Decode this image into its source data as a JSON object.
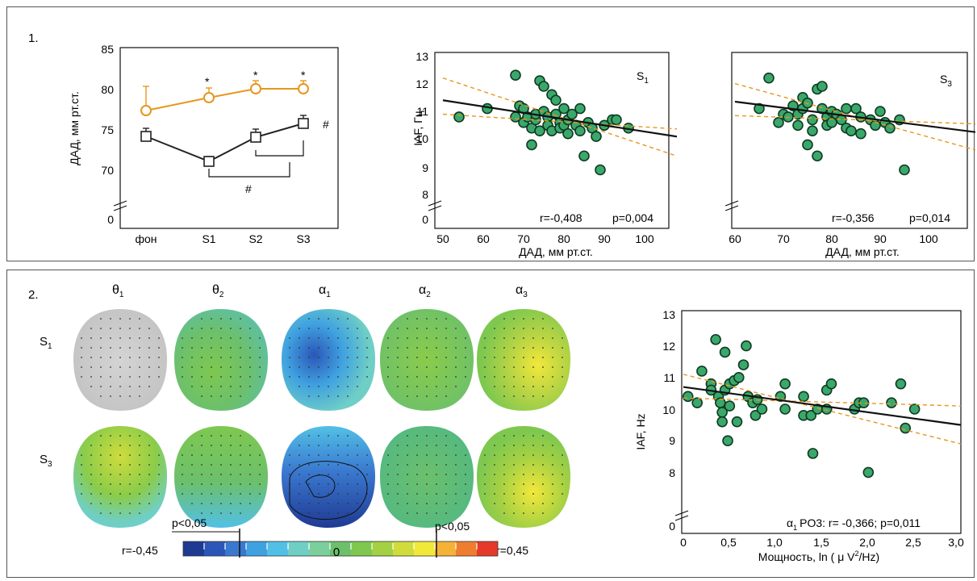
{
  "panel1": {
    "label": "1.",
    "chartA": {
      "ylabel": "ДАД, мм рт.ст.",
      "yticks": [
        "85",
        "80",
        "75",
        "70",
        "0"
      ],
      "xticks": [
        "фон",
        "S1",
        "S2",
        "S3"
      ],
      "star": "*",
      "hash": "#"
    },
    "chartB": {
      "ylabel": "IAF, Гц",
      "xlabel": "ДАД, мм рт.ст.",
      "title": "S",
      "sub": "1",
      "r": "r=-0,408",
      "p": "p=0,004",
      "yticks": [
        "13",
        "12",
        "11",
        "10",
        "9",
        "8",
        "0"
      ],
      "xticks": [
        "50",
        "60",
        "70",
        "80",
        "90",
        "100"
      ]
    },
    "chartC": {
      "xlabel": "ДАД, мм рт.ст.",
      "title": "S",
      "sub": "3",
      "r": "r=-0,356",
      "p": "p=0,014",
      "xticks": [
        "60",
        "70",
        "80",
        "90",
        "100"
      ]
    }
  },
  "panel2": {
    "label": "2.",
    "bands": [
      {
        "sym": "θ",
        "sub": "1"
      },
      {
        "sym": "θ",
        "sub": "2"
      },
      {
        "sym": "α",
        "sub": "1"
      },
      {
        "sym": "α",
        "sub": "2"
      },
      {
        "sym": "α",
        "sub": "3"
      }
    ],
    "rows": [
      {
        "sym": "S",
        "sub": "1"
      },
      {
        "sym": "S",
        "sub": "3"
      }
    ],
    "colorbar": {
      "left": "r=-0,45",
      "right": "r=0,45",
      "center": "0",
      "p_left": "p<0,05",
      "p_right": "p<0,05",
      "colors": [
        "#1f3a93",
        "#2b56b8",
        "#3a78cf",
        "#3fa1e0",
        "#52c0e6",
        "#6fcfc6",
        "#7bcf9d",
        "#6cc06c",
        "#7ec850",
        "#a4d044",
        "#cfdc3c",
        "#f2e83a",
        "#f5b236",
        "#ef7d2f",
        "#e53a2a"
      ]
    },
    "scatter": {
      "ylabel": "IAF, Hz",
      "xlabel_pre": "Мощность, ln ( μ V",
      "xlabel_sup": "2",
      "xlabel_post": "/Hz)",
      "annot_sym": "α",
      "annot_sub": "1",
      "annot_text": "PO3: r= -0,366;  p=0,011",
      "yticks": [
        "13",
        "12",
        "11",
        "10",
        "9",
        "8",
        "0"
      ],
      "xticks": [
        "0",
        "0,5",
        "1,0",
        "1,5",
        "2,0",
        "2,5",
        "3,0"
      ]
    }
  },
  "chart_data": [
    {
      "type": "line",
      "categories": [
        "фон",
        "S1",
        "S2",
        "S3"
      ],
      "series": [
        {
          "values": [
            77.2,
            78.8,
            79.9,
            79.9
          ],
          "err": [
            3.0,
            1.2,
            1.0,
            1.0
          ],
          "color": "#e8961e"
        },
        {
          "values": [
            74.0,
            70.9,
            73.9,
            75.6
          ],
          "err": [
            1.0,
            0.6,
            1.0,
            1.0
          ],
          "color": "#222222"
        }
      ],
      "ylabel": "ДАД, мм рт.ст.",
      "ylim": [
        68,
        85
      ]
    },
    {
      "type": "scatter",
      "xlabel": "ДАД, мм рт.ст.",
      "ylabel": "IAF, Гц",
      "xlim": [
        50,
        110
      ],
      "ylim": [
        7.5,
        13
      ],
      "points": [
        [
          54,
          10.9
        ],
        [
          61,
          11.2
        ],
        [
          68,
          12.4
        ],
        [
          68,
          10.9
        ],
        [
          69,
          11.3
        ],
        [
          70,
          11.2
        ],
        [
          70,
          10.7
        ],
        [
          71,
          10.9
        ],
        [
          72,
          9.9
        ],
        [
          72,
          10.5
        ],
        [
          73,
          10.8
        ],
        [
          73,
          11.0
        ],
        [
          74,
          12.2
        ],
        [
          74,
          10.4
        ],
        [
          75,
          12.0
        ],
        [
          75,
          11.1
        ],
        [
          76,
          10.9
        ],
        [
          76,
          10.6
        ],
        [
          77,
          11.7
        ],
        [
          77,
          10.4
        ],
        [
          78,
          11.5
        ],
        [
          78,
          11.0
        ],
        [
          79,
          10.7
        ],
        [
          79,
          10.5
        ],
        [
          80,
          11.2
        ],
        [
          80,
          10.6
        ],
        [
          81,
          10.8
        ],
        [
          81,
          10.3
        ],
        [
          82,
          11.0
        ],
        [
          83,
          10.6
        ],
        [
          84,
          11.2
        ],
        [
          84,
          10.4
        ],
        [
          85,
          9.5
        ],
        [
          86,
          10.7
        ],
        [
          87,
          10.5
        ],
        [
          88,
          10.2
        ],
        [
          89,
          9.0
        ],
        [
          90,
          10.6
        ],
        [
          92,
          10.8
        ],
        [
          93,
          10.8
        ],
        [
          96,
          10.5
        ]
      ],
      "fit": {
        "x": [
          50,
          110
        ],
        "y": [
          11.5,
          10.15
        ]
      },
      "ci_upper": {
        "x": [
          50,
          110
        ],
        "y": [
          12.3,
          9.4
        ]
      },
      "ci_lower": {
        "x": [
          50,
          110
        ],
        "y": [
          11.0,
          10.45
        ]
      }
    },
    {
      "type": "scatter",
      "xlabel": "ДАД, мм рт.ст.",
      "xlim": [
        60,
        110
      ],
      "ylim": [
        7.5,
        13
      ],
      "points": [
        [
          65,
          11.2
        ],
        [
          67,
          12.3
        ],
        [
          69,
          10.7
        ],
        [
          70,
          11.0
        ],
        [
          71,
          10.9
        ],
        [
          72,
          11.3
        ],
        [
          73,
          10.6
        ],
        [
          73,
          11.0
        ],
        [
          74,
          11.6
        ],
        [
          74,
          11.2
        ],
        [
          75,
          11.4
        ],
        [
          75,
          9.9
        ],
        [
          76,
          10.8
        ],
        [
          76,
          10.4
        ],
        [
          77,
          11.9
        ],
        [
          77,
          9.5
        ],
        [
          78,
          12.0
        ],
        [
          78,
          11.2
        ],
        [
          79,
          10.9
        ],
        [
          79,
          10.6
        ],
        [
          80,
          11.1
        ],
        [
          80,
          10.7
        ],
        [
          81,
          11.0
        ],
        [
          82,
          10.8
        ],
        [
          83,
          11.2
        ],
        [
          83,
          10.5
        ],
        [
          84,
          10.4
        ],
        [
          85,
          11.2
        ],
        [
          86,
          10.9
        ],
        [
          86,
          10.3
        ],
        [
          88,
          10.8
        ],
        [
          89,
          10.6
        ],
        [
          90,
          11.1
        ],
        [
          91,
          10.7
        ],
        [
          92,
          10.5
        ],
        [
          94,
          10.8
        ],
        [
          95,
          9.0
        ]
      ],
      "fit": {
        "x": [
          60,
          110
        ],
        "y": [
          11.45,
          10.35
        ]
      },
      "ci_upper": {
        "x": [
          60,
          110
        ],
        "y": [
          12.1,
          9.7
        ]
      },
      "ci_lower": {
        "x": [
          60,
          110
        ],
        "y": [
          10.95,
          10.65
        ]
      }
    },
    {
      "type": "scatter",
      "xlabel": "Мощность, ln ( μ V2/Hz)",
      "ylabel": "IAF, Hz",
      "xlim": [
        0,
        3.0
      ],
      "ylim": [
        7.5,
        13
      ],
      "points": [
        [
          0.05,
          10.4
        ],
        [
          0.15,
          10.2
        ],
        [
          0.2,
          11.2
        ],
        [
          0.3,
          10.8
        ],
        [
          0.3,
          10.6
        ],
        [
          0.35,
          12.2
        ],
        [
          0.38,
          10.4
        ],
        [
          0.4,
          10.2
        ],
        [
          0.42,
          9.9
        ],
        [
          0.42,
          9.6
        ],
        [
          0.45,
          11.8
        ],
        [
          0.45,
          10.6
        ],
        [
          0.48,
          9.0
        ],
        [
          0.5,
          10.8
        ],
        [
          0.5,
          10.1
        ],
        [
          0.55,
          10.9
        ],
        [
          0.58,
          9.6
        ],
        [
          0.6,
          11.0
        ],
        [
          0.65,
          11.4
        ],
        [
          0.68,
          12.0
        ],
        [
          0.7,
          10.4
        ],
        [
          0.75,
          10.2
        ],
        [
          0.78,
          9.8
        ],
        [
          0.8,
          10.3
        ],
        [
          0.85,
          10.0
        ],
        [
          1.05,
          10.4
        ],
        [
          1.1,
          10.8
        ],
        [
          1.1,
          10.0
        ],
        [
          1.3,
          10.4
        ],
        [
          1.3,
          9.8
        ],
        [
          1.38,
          9.8
        ],
        [
          1.4,
          8.6
        ],
        [
          1.45,
          10.0
        ],
        [
          1.55,
          10.0
        ],
        [
          1.55,
          10.6
        ],
        [
          1.6,
          10.8
        ],
        [
          1.85,
          10.0
        ],
        [
          1.9,
          10.2
        ],
        [
          1.95,
          10.2
        ],
        [
          2.0,
          8.0
        ],
        [
          2.25,
          10.2
        ],
        [
          2.35,
          10.8
        ],
        [
          2.4,
          9.4
        ],
        [
          2.5,
          10.0
        ]
      ],
      "fit": {
        "x": [
          0,
          3.0
        ],
        "y": [
          10.7,
          9.5
        ]
      },
      "ci_upper": {
        "x": [
          0,
          3.0
        ],
        "y": [
          11.1,
          8.9
        ]
      },
      "ci_lower": {
        "x": [
          0,
          3.0
        ],
        "y": [
          10.35,
          10.1
        ]
      }
    }
  ]
}
